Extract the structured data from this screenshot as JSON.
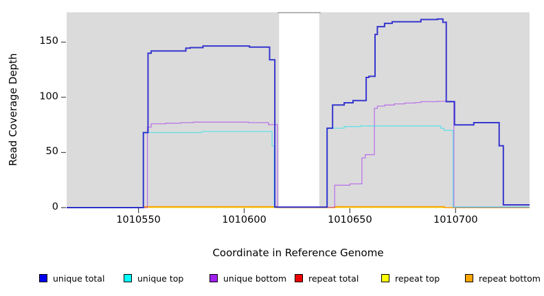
{
  "chart_data": {
    "type": "line",
    "subtype": "step-after",
    "title": "",
    "xlabel": "Coordinate in Reference Genome",
    "ylabel": "Read Coverage Depth",
    "xlim": [
      1010516,
      1010735
    ],
    "ylim": [
      0,
      177
    ],
    "x_ticks": [
      "1010550",
      "1010600",
      "1010650",
      "1010700"
    ],
    "x_tick_values": [
      1010550,
      1010600,
      1010650,
      1010700
    ],
    "y_ticks": [
      "0",
      "50",
      "100",
      "150"
    ],
    "y_tick_values": [
      0,
      50,
      100,
      150
    ],
    "grid": false,
    "plot_bg_color": "#dbdbdb",
    "gap_region": {
      "from": 1010616.5,
      "to": 1010635.5,
      "color": "#ffffff",
      "top_edge_color": "#999999"
    },
    "series": [
      {
        "name": "repeat total",
        "color": "#dd0000",
        "opacity": 0.9,
        "width": 1,
        "points": [
          [
            1010516,
            0
          ],
          [
            1010735,
            0
          ]
        ]
      },
      {
        "name": "repeat top",
        "color": "#eeee00",
        "opacity": 0.9,
        "width": 1,
        "points": [
          [
            1010516,
            0
          ],
          [
            1010735,
            0
          ]
        ]
      },
      {
        "name": "repeat bottom",
        "color": "#ff9900",
        "opacity": 0.95,
        "width": 1.6,
        "points": [
          [
            1010516,
            0
          ],
          [
            1010553,
            0.8
          ],
          [
            1010615.5,
            0
          ],
          [
            1010642.8,
            0.8
          ],
          [
            1010694.8,
            0
          ],
          [
            1010735,
            0
          ]
        ]
      },
      {
        "name": "unique bottom",
        "color": "#a020f0",
        "opacity": 0.55,
        "width": 1.3,
        "points": [
          [
            1010516,
            0
          ],
          [
            1010554.2,
            73
          ],
          [
            1010556,
            76
          ],
          [
            1010563,
            76.5
          ],
          [
            1010570,
            77
          ],
          [
            1010576,
            77.5
          ],
          [
            1010602,
            77
          ],
          [
            1010611.5,
            75.2
          ],
          [
            1010615.7,
            0.3
          ],
          [
            1010642.8,
            20.3
          ],
          [
            1010650,
            21.5
          ],
          [
            1010655.7,
            45
          ],
          [
            1010657.3,
            48
          ],
          [
            1010661.6,
            90
          ],
          [
            1010663,
            92
          ],
          [
            1010666.4,
            93
          ],
          [
            1010671,
            94
          ],
          [
            1010676,
            94.8
          ],
          [
            1010681,
            95.3
          ],
          [
            1010683.6,
            96
          ],
          [
            1010691.4,
            96.3
          ],
          [
            1010699.2,
            0.3
          ],
          [
            1010735,
            0.3
          ]
        ]
      },
      {
        "name": "unique top",
        "color": "#00e5ee",
        "opacity": 0.55,
        "width": 1.3,
        "points": [
          [
            1010516,
            0
          ],
          [
            1010552.3,
            68
          ],
          [
            1010580,
            69
          ],
          [
            1010613.2,
            56
          ],
          [
            1010614.2,
            0.4
          ],
          [
            1010639.2,
            72
          ],
          [
            1010647.3,
            73.5
          ],
          [
            1010655,
            74
          ],
          [
            1010693,
            72
          ],
          [
            1010694.5,
            70
          ],
          [
            1010698.8,
            0.5
          ],
          [
            1010735,
            0.5
          ]
        ]
      },
      {
        "name": "unique total",
        "color": "#2222cc",
        "opacity": 0.9,
        "width": 2,
        "points": [
          [
            1010516,
            0
          ],
          [
            1010552.3,
            68
          ],
          [
            1010554.5,
            140
          ],
          [
            1010556,
            142
          ],
          [
            1010572.4,
            144.5
          ],
          [
            1010574.5,
            145
          ],
          [
            1010580.5,
            146.5
          ],
          [
            1010602.5,
            145.5
          ],
          [
            1010612,
            134
          ],
          [
            1010614.5,
            0.5
          ],
          [
            1010639.2,
            72
          ],
          [
            1010641.8,
            93
          ],
          [
            1010647.3,
            95
          ],
          [
            1010651.5,
            97
          ],
          [
            1010657.7,
            118
          ],
          [
            1010659,
            119
          ],
          [
            1010661.9,
            157
          ],
          [
            1010663,
            164
          ],
          [
            1010666.4,
            167
          ],
          [
            1010670,
            168.5
          ],
          [
            1010683.6,
            170.5
          ],
          [
            1010691.4,
            171
          ],
          [
            1010694,
            168
          ],
          [
            1010695.6,
            96
          ],
          [
            1010699.5,
            75
          ],
          [
            1010708.6,
            77
          ],
          [
            1010720.6,
            56
          ],
          [
            1010722.6,
            2.5
          ],
          [
            1010735,
            2.5
          ]
        ]
      }
    ],
    "legend": [
      {
        "label": "unique total",
        "color": "#0000ee"
      },
      {
        "label": "unique top",
        "color": "#00ffff"
      },
      {
        "label": "unique bottom",
        "color": "#a020f0"
      },
      {
        "label": "repeat total",
        "color": "#ee0000"
      },
      {
        "label": "repeat top",
        "color": "#ffff00"
      },
      {
        "label": "repeat bottom",
        "color": "#ffa500"
      }
    ],
    "legend_position": "bottom",
    "axis_tick_color": "#444444"
  }
}
